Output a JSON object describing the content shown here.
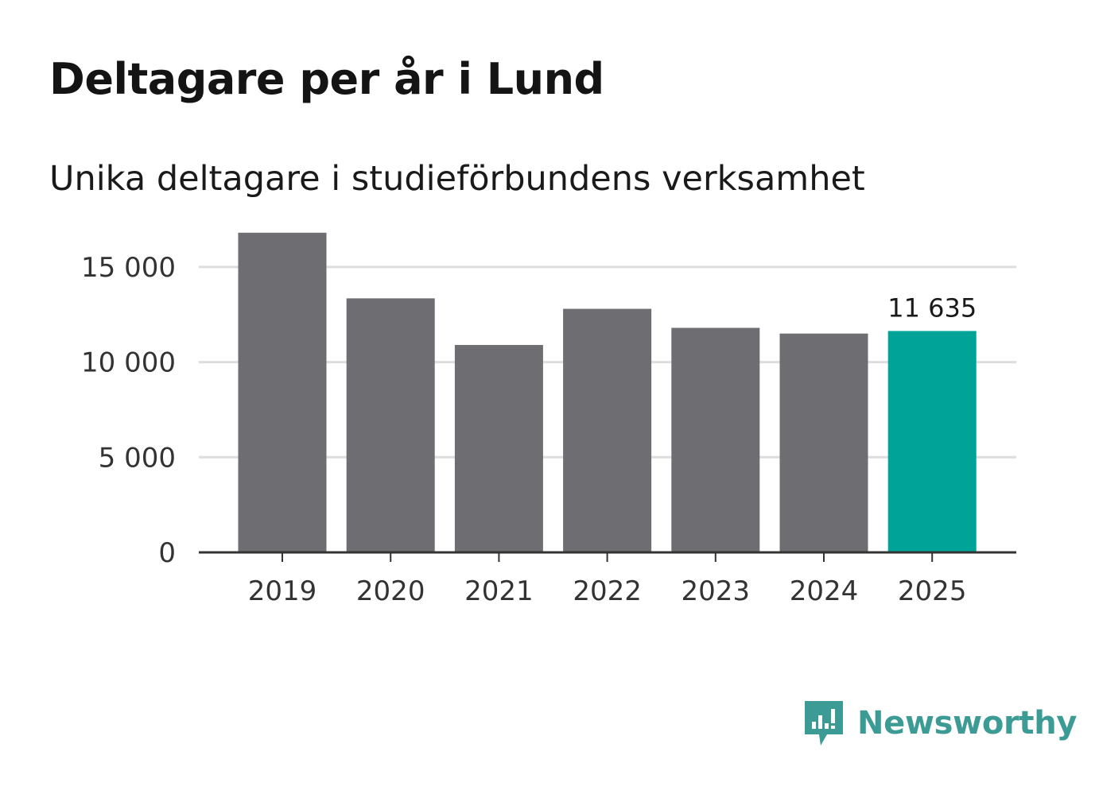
{
  "header": {
    "title": "Deltagare per år i Lund",
    "subtitle": "Unika deltagare i studieförbundens verksamhet"
  },
  "chart_data": {
    "type": "bar",
    "title": "Deltagare per år i Lund",
    "subtitle": "Unika deltagare i studieförbundens verksamhet",
    "xlabel": "",
    "ylabel": "",
    "categories": [
      "2019",
      "2020",
      "2021",
      "2022",
      "2023",
      "2024",
      "2025"
    ],
    "values": [
      16800,
      13350,
      10900,
      12800,
      11800,
      11500,
      11635
    ],
    "ylim": [
      0,
      17000
    ],
    "yticks": [
      0,
      5000,
      10000,
      15000
    ],
    "ytick_labels": [
      "0",
      "5 000",
      "10 000",
      "15 000"
    ],
    "grid": true,
    "highlight_index": 6,
    "highlight_label": "11 635",
    "colors": {
      "bar": "#6e6d72",
      "highlight": "#00a398",
      "grid": "#dddddd",
      "axis": "#333333"
    }
  },
  "branding": {
    "name": "Newsworthy",
    "logo_icon": "newsworthy-logo-icon",
    "color": "#3d9b95"
  }
}
